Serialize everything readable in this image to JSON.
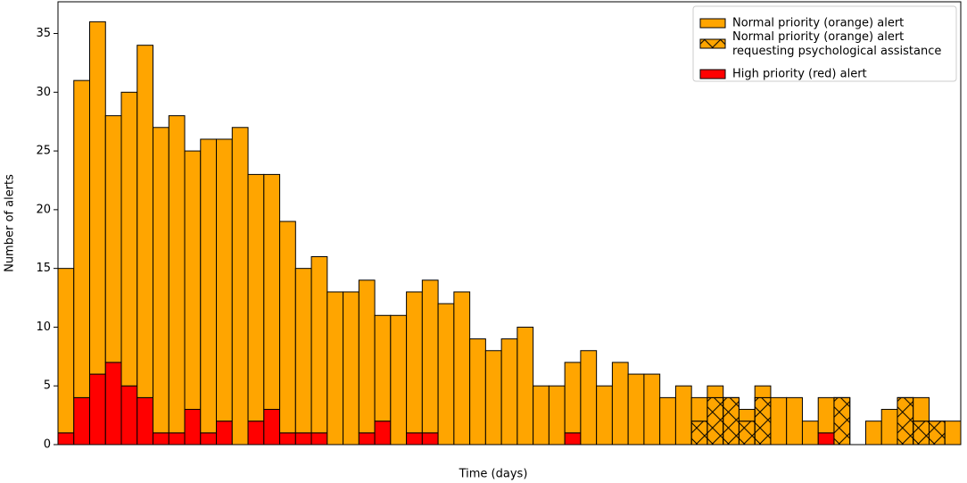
{
  "chart_data": {
    "type": "bar",
    "stacked": true,
    "xlabel": "Time (days)",
    "ylabel": "Number of alerts",
    "categories": [
      null,
      null,
      null,
      null,
      null,
      null,
      null,
      null,
      null,
      null,
      null,
      null,
      null,
      null,
      null,
      null,
      null,
      null,
      null,
      null,
      null,
      null,
      null,
      null,
      null,
      null,
      null,
      null,
      null,
      null,
      null,
      null,
      null,
      null,
      null,
      null,
      null,
      null,
      null,
      null,
      null,
      null,
      null,
      null,
      null,
      null,
      null,
      null,
      null,
      null,
      null,
      null,
      null,
      null,
      null,
      null,
      null
    ],
    "series": [
      {
        "name": "High priority (red) alert",
        "color": "#ff0000",
        "hatch": null,
        "values": [
          1,
          4,
          6,
          7,
          5,
          4,
          1,
          1,
          3,
          1,
          2,
          0,
          2,
          3,
          1,
          1,
          1,
          0,
          0,
          1,
          2,
          0,
          1,
          1,
          0,
          0,
          0,
          0,
          0,
          0,
          0,
          0,
          1,
          0,
          0,
          0,
          0,
          0,
          0,
          0,
          0,
          0,
          0,
          0,
          0,
          0,
          0,
          0,
          1,
          0,
          0,
          0,
          0,
          0,
          0,
          0,
          0
        ]
      },
      {
        "name": "Normal priority (orange) alert requesting psychological assistance",
        "color": "#ffa500",
        "hatch": "x",
        "values": [
          0,
          0,
          0,
          0,
          0,
          0,
          0,
          0,
          0,
          0,
          0,
          0,
          0,
          0,
          0,
          0,
          0,
          0,
          0,
          0,
          0,
          0,
          0,
          0,
          0,
          0,
          0,
          0,
          0,
          0,
          0,
          0,
          0,
          0,
          0,
          0,
          0,
          0,
          0,
          0,
          2,
          4,
          4,
          2,
          4,
          0,
          0,
          0,
          0,
          4,
          0,
          0,
          0,
          4,
          2,
          2,
          0
        ]
      },
      {
        "name": "Normal priority (orange) alert",
        "color": "#ffa500",
        "hatch": null,
        "values": [
          14,
          27,
          30,
          21,
          25,
          30,
          26,
          27,
          22,
          25,
          24,
          27,
          21,
          20,
          18,
          14,
          15,
          13,
          13,
          13,
          9,
          11,
          12,
          13,
          12,
          13,
          9,
          8,
          9,
          10,
          5,
          5,
          6,
          8,
          5,
          7,
          6,
          6,
          4,
          5,
          2,
          1,
          0,
          1,
          1,
          4,
          4,
          2,
          3,
          0,
          0,
          2,
          3,
          0,
          2,
          0,
          2
        ]
      }
    ],
    "legend_order": [
      2,
      1,
      0
    ],
    "legend": "upper right",
    "ylim": [
      0,
      37.7
    ],
    "yticks": [
      0,
      5,
      10,
      15,
      20,
      25,
      30,
      35
    ]
  }
}
